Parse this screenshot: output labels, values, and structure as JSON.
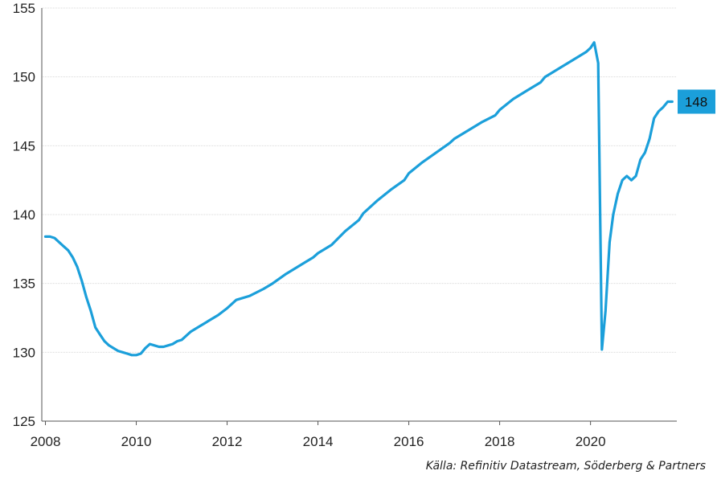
{
  "chart_data": {
    "type": "line",
    "title": "",
    "xlabel": "",
    "ylabel": "",
    "xlim": [
      2007.92,
      2021.9
    ],
    "ylim": [
      125,
      155
    ],
    "yticks": [
      125,
      130,
      135,
      140,
      145,
      150,
      155
    ],
    "xticks": [
      2008,
      2010,
      2012,
      2014,
      2016,
      2018,
      2020
    ],
    "grid": "horizontal",
    "line_color": "#1b9fda",
    "label_color": "#1b9fda",
    "end_label": "148",
    "series": [
      {
        "x": [
          2008.0,
          2008.1,
          2008.2,
          2008.3,
          2008.4,
          2008.5,
          2008.6,
          2008.7,
          2008.8,
          2008.9,
          2009.0,
          2009.1,
          2009.2,
          2009.3,
          2009.4,
          2009.5,
          2009.6,
          2009.7,
          2009.8,
          2009.9,
          2010.0,
          2010.1,
          2010.2,
          2010.3,
          2010.4,
          2010.5,
          2010.6,
          2010.7,
          2010.8,
          2010.9,
          2011.0,
          2011.2,
          2011.4,
          2011.6,
          2011.8,
          2012.0,
          2012.2,
          2012.5,
          2012.8,
          2013.0,
          2013.3,
          2013.6,
          2013.9,
          2014.0,
          2014.3,
          2014.6,
          2014.9,
          2015.0,
          2015.3,
          2015.6,
          2015.9,
          2016.0,
          2016.3,
          2016.6,
          2016.9,
          2017.0,
          2017.3,
          2017.6,
          2017.9,
          2018.0,
          2018.3,
          2018.6,
          2018.9,
          2019.0,
          2019.3,
          2019.6,
          2019.9,
          2020.0,
          2020.08,
          2020.17,
          2020.25,
          2020.33,
          2020.42,
          2020.5,
          2020.6,
          2020.7,
          2020.8,
          2020.9,
          2021.0,
          2021.1,
          2021.2,
          2021.3,
          2021.4,
          2021.5,
          2021.6,
          2021.7,
          2021.8
        ],
        "y": [
          138.4,
          138.4,
          138.3,
          138.0,
          137.7,
          137.4,
          136.9,
          136.2,
          135.2,
          134.0,
          133.0,
          131.8,
          131.3,
          130.8,
          130.5,
          130.3,
          130.1,
          130.0,
          129.9,
          129.8,
          129.8,
          129.9,
          130.3,
          130.6,
          130.5,
          130.4,
          130.4,
          130.5,
          130.6,
          130.8,
          130.9,
          131.5,
          131.9,
          132.3,
          132.7,
          133.2,
          133.8,
          134.1,
          134.6,
          135.0,
          135.7,
          136.3,
          136.9,
          137.2,
          137.8,
          138.8,
          139.6,
          140.1,
          141.0,
          141.8,
          142.5,
          143.0,
          143.8,
          144.5,
          145.2,
          145.5,
          146.1,
          146.7,
          147.2,
          147.6,
          148.4,
          149.0,
          149.6,
          150.0,
          150.6,
          151.2,
          151.8,
          152.1,
          152.5,
          151.0,
          130.2,
          133.0,
          138.0,
          140.0,
          141.5,
          142.5,
          142.8,
          142.5,
          142.8,
          144.0,
          144.5,
          145.5,
          147.0,
          147.5,
          147.8,
          148.2,
          148.2
        ]
      }
    ]
  },
  "source": "Källa: Refinitiv Datastream, Söderberg & Partners"
}
